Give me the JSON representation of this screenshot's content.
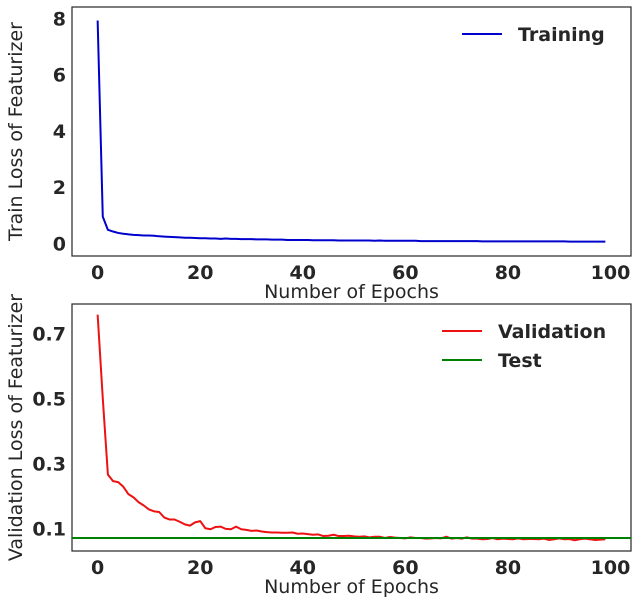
{
  "chart_data": [
    {
      "type": "line",
      "xlabel": "Number of Epochs",
      "ylabel": "Train Loss of Featurizer",
      "xlim": [
        -5,
        104
      ],
      "ylim": [
        -0.45,
        8.4
      ],
      "xticks": [
        0,
        20,
        40,
        60,
        80,
        100
      ],
      "xtick_labels": [
        "0",
        "20",
        "40",
        "60",
        "80",
        "100"
      ],
      "yticks": [
        0,
        2,
        4,
        6,
        8
      ],
      "ytick_labels": [
        "0",
        "2",
        "4",
        "6",
        "8"
      ],
      "grid": false,
      "legend_position": "top-right",
      "series": [
        {
          "name": "Training",
          "color": "#0000cc",
          "kind": "line",
          "x": [
            0,
            1,
            2,
            3,
            4,
            5,
            6,
            7,
            8,
            9,
            10,
            11,
            12,
            13,
            14,
            15,
            16,
            17,
            18,
            19,
            20,
            21,
            22,
            23,
            24,
            25,
            26,
            27,
            28,
            29,
            30,
            31,
            32,
            33,
            34,
            35,
            36,
            37,
            38,
            39,
            40,
            41,
            42,
            43,
            44,
            45,
            46,
            47,
            48,
            49,
            50,
            51,
            52,
            53,
            54,
            55,
            56,
            57,
            58,
            59,
            60,
            61,
            62,
            63,
            64,
            65,
            66,
            67,
            68,
            69,
            70,
            71,
            72,
            73,
            74,
            75,
            76,
            77,
            78,
            79,
            80,
            81,
            82,
            83,
            84,
            85,
            86,
            87,
            88,
            89,
            90,
            91,
            92,
            93,
            94,
            95,
            96,
            97,
            98,
            99
          ],
          "values": [
            7.92,
            0.95,
            0.48,
            0.42,
            0.37,
            0.34,
            0.32,
            0.3,
            0.29,
            0.28,
            0.28,
            0.27,
            0.25,
            0.24,
            0.23,
            0.22,
            0.21,
            0.2,
            0.2,
            0.19,
            0.18,
            0.18,
            0.17,
            0.17,
            0.16,
            0.17,
            0.16,
            0.16,
            0.15,
            0.15,
            0.15,
            0.14,
            0.14,
            0.14,
            0.13,
            0.13,
            0.13,
            0.12,
            0.12,
            0.12,
            0.12,
            0.12,
            0.11,
            0.11,
            0.11,
            0.11,
            0.11,
            0.1,
            0.1,
            0.1,
            0.1,
            0.1,
            0.1,
            0.1,
            0.09,
            0.1,
            0.09,
            0.09,
            0.09,
            0.09,
            0.09,
            0.09,
            0.09,
            0.08,
            0.08,
            0.08,
            0.08,
            0.08,
            0.08,
            0.08,
            0.08,
            0.08,
            0.08,
            0.08,
            0.08,
            0.07,
            0.07,
            0.07,
            0.07,
            0.07,
            0.07,
            0.07,
            0.07,
            0.07,
            0.07,
            0.07,
            0.07,
            0.07,
            0.07,
            0.07,
            0.07,
            0.07,
            0.06,
            0.06,
            0.06,
            0.06,
            0.06,
            0.06,
            0.06,
            0.06
          ]
        }
      ]
    },
    {
      "type": "line",
      "xlabel": "Number of Epochs",
      "ylabel": "Validation Loss of Featurizer",
      "xlim": [
        -5,
        104
      ],
      "ylim": [
        0.03,
        0.79
      ],
      "xticks": [
        0,
        20,
        40,
        60,
        80,
        100
      ],
      "xtick_labels": [
        "0",
        "20",
        "40",
        "60",
        "80",
        "100"
      ],
      "yticks": [
        0.1,
        0.3,
        0.5,
        0.7
      ],
      "ytick_labels": [
        "0.1",
        "0.3",
        "0.5",
        "0.7"
      ],
      "grid": false,
      "legend_position": "top-right",
      "series": [
        {
          "name": "Validation",
          "color": "#ee1111",
          "kind": "line",
          "x": [
            0,
            1,
            2,
            3,
            4,
            5,
            6,
            7,
            8,
            9,
            10,
            11,
            12,
            13,
            14,
            15,
            16,
            17,
            18,
            19,
            20,
            21,
            22,
            23,
            24,
            25,
            26,
            27,
            28,
            29,
            30,
            31,
            32,
            33,
            34,
            35,
            36,
            37,
            38,
            39,
            40,
            41,
            42,
            43,
            44,
            45,
            46,
            47,
            48,
            49,
            50,
            51,
            52,
            53,
            54,
            55,
            56,
            57,
            58,
            59,
            60,
            61,
            62,
            63,
            64,
            65,
            66,
            67,
            68,
            69,
            70,
            71,
            72,
            73,
            74,
            75,
            76,
            77,
            78,
            79,
            80,
            81,
            82,
            83,
            84,
            85,
            86,
            87,
            88,
            89,
            90,
            91,
            92,
            93,
            94,
            95,
            96,
            97,
            98,
            99
          ],
          "values": [
            0.757,
            0.5,
            0.265,
            0.245,
            0.242,
            0.228,
            0.205,
            0.195,
            0.18,
            0.17,
            0.158,
            0.152,
            0.15,
            0.133,
            0.127,
            0.127,
            0.12,
            0.112,
            0.108,
            0.118,
            0.122,
            0.1,
            0.097,
            0.104,
            0.105,
            0.098,
            0.097,
            0.105,
            0.097,
            0.095,
            0.092,
            0.093,
            0.09,
            0.088,
            0.087,
            0.087,
            0.086,
            0.086,
            0.087,
            0.083,
            0.084,
            0.082,
            0.08,
            0.081,
            0.076,
            0.077,
            0.08,
            0.076,
            0.076,
            0.077,
            0.075,
            0.074,
            0.075,
            0.072,
            0.074,
            0.074,
            0.07,
            0.073,
            0.071,
            0.07,
            0.069,
            0.072,
            0.07,
            0.07,
            0.068,
            0.069,
            0.07,
            0.069,
            0.074,
            0.068,
            0.07,
            0.068,
            0.072,
            0.068,
            0.068,
            0.066,
            0.067,
            0.07,
            0.066,
            0.068,
            0.067,
            0.066,
            0.069,
            0.066,
            0.067,
            0.067,
            0.066,
            0.068,
            0.064,
            0.066,
            0.069,
            0.066,
            0.067,
            0.063,
            0.066,
            0.068,
            0.066,
            0.064,
            0.065,
            0.066
          ]
        },
        {
          "name": "Test",
          "color": "#008000",
          "kind": "hline",
          "y": 0.07
        }
      ]
    }
  ]
}
